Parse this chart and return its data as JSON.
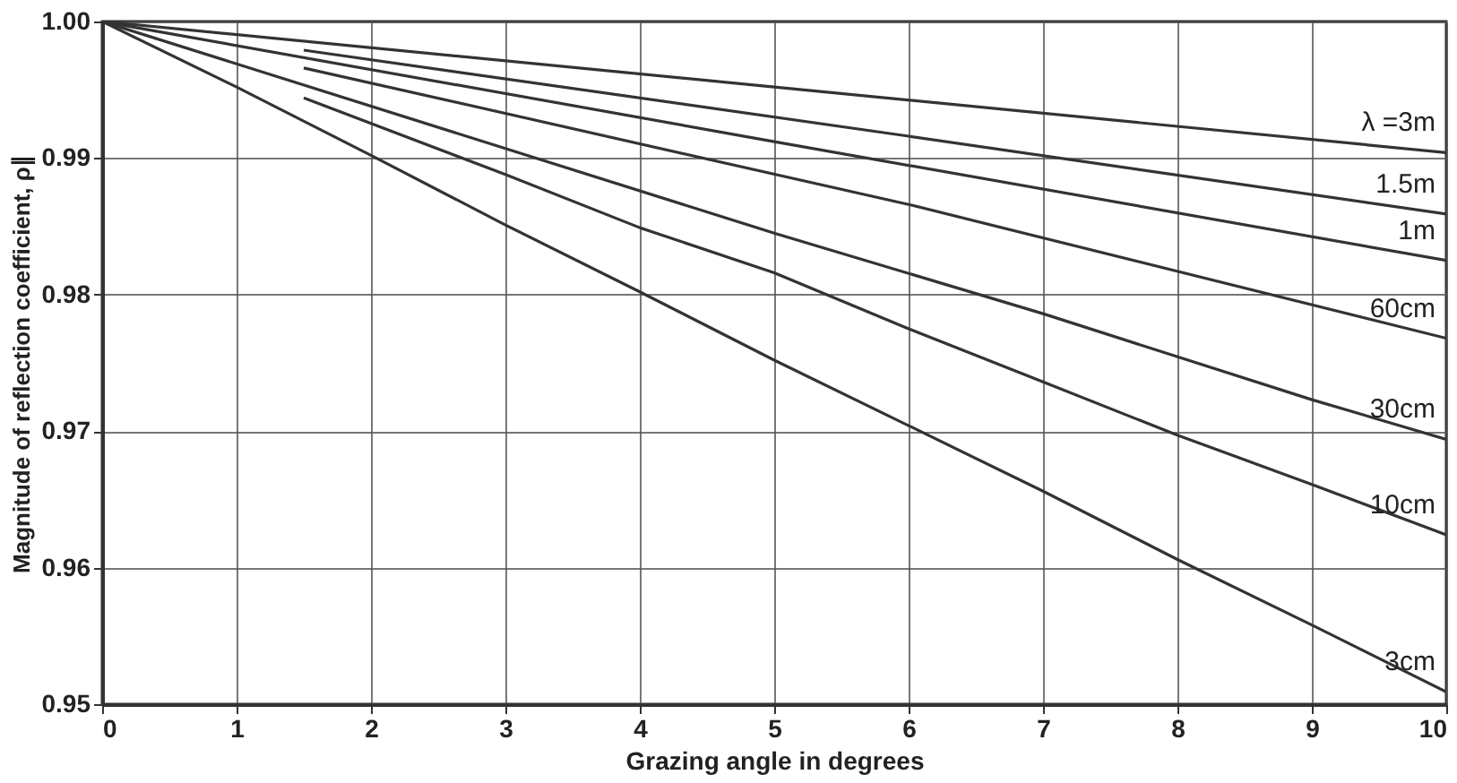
{
  "chart_data": {
    "type": "line",
    "xlabel": "Grazing angle in degrees",
    "ylabel": "Magnitude of reflection coefficient, ρ∥",
    "xlim": [
      0,
      10
    ],
    "xticks": [
      0,
      1,
      2,
      3,
      4,
      5,
      6,
      7,
      8,
      9,
      10
    ],
    "ylim": [
      0.95,
      1.0
    ],
    "yticks": [
      {
        "value": 1.0,
        "label": "1.00"
      },
      0.99,
      0.98,
      0.97,
      0.96,
      0.95
    ],
    "grid": true,
    "legend": false,
    "marker": "none",
    "line_style": "solid",
    "series": [
      {
        "name": "λ =3m",
        "color": "#333333",
        "x": [
          0,
          5,
          10
        ],
        "values": [
          1.0,
          0.9952,
          0.9904
        ]
      },
      {
        "name": "1.5m",
        "color": "#333333",
        "x": [
          1.5,
          6,
          10
        ],
        "values": [
          0.9979,
          0.9916,
          0.9859
        ]
      },
      {
        "name": "1m",
        "color": "#333333",
        "x": [
          0,
          5,
          10
        ],
        "values": [
          1.0,
          0.9912,
          0.9825
        ]
      },
      {
        "name": "60cm",
        "color": "#333333",
        "x": [
          1.5,
          6,
          10
        ],
        "values": [
          0.9966,
          0.9866,
          0.9768
        ]
      },
      {
        "name": "30cm",
        "color": "#333333",
        "x": [
          0,
          5,
          7,
          9,
          10
        ],
        "values": [
          1.0,
          0.9845,
          0.9786,
          0.9723,
          0.9694
        ]
      },
      {
        "name": "10cm",
        "color": "#333333",
        "x": [
          1.5,
          3,
          4,
          5,
          6,
          7,
          8,
          9,
          10
        ],
        "values": [
          0.9944,
          0.9888,
          0.9849,
          0.9816,
          0.9775,
          0.9736,
          0.9697,
          0.9661,
          0.9624
        ]
      },
      {
        "name": "3cm",
        "color": "#333333",
        "x": [
          0,
          1,
          2,
          3,
          4,
          5,
          6,
          7,
          8,
          9,
          10
        ],
        "values": [
          1.0,
          0.9952,
          0.9902,
          0.9851,
          0.9802,
          0.9752,
          0.9704,
          0.9656,
          0.9606,
          0.9558,
          0.9509
        ]
      }
    ]
  }
}
